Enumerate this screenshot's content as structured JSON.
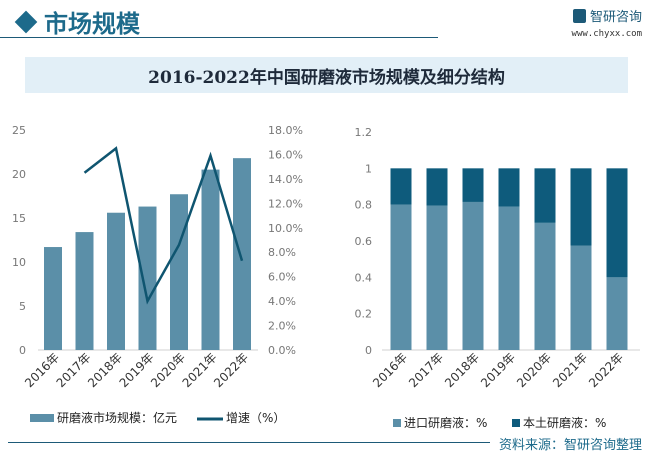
{
  "header": {
    "section_title": "市场规模",
    "brand_name": "智研咨询",
    "brand_url": "www.chyxx.com"
  },
  "title": "2016-2022年中国研磨液市场规模及细分结构",
  "source": "资料来源：智研咨询整理",
  "colors": {
    "bar": "#5b8fa8",
    "line": "#0f5570",
    "domestic": "#0e5b7c"
  },
  "chart_data": [
    {
      "type": "bar+line",
      "categories": [
        "2016年",
        "2017年",
        "2018年",
        "2019年",
        "2020年",
        "2021年",
        "2022年"
      ],
      "series": [
        {
          "name": "研磨液市场规模：亿元",
          "type": "bar",
          "axis": "left",
          "values": [
            11.7,
            13.4,
            15.6,
            16.3,
            17.7,
            20.5,
            21.8
          ]
        },
        {
          "name": "增速（%）",
          "type": "line",
          "axis": "right",
          "values": [
            null,
            14.5,
            16.5,
            4.0,
            8.6,
            15.9,
            7.3
          ]
        }
      ],
      "ylim": [
        0,
        25
      ],
      "yticks": [
        "0",
        "5",
        "10",
        "15",
        "20",
        "25"
      ],
      "y2lim": [
        0,
        18
      ],
      "y2ticks": [
        "0.0%",
        "2.0%",
        "4.0%",
        "6.0%",
        "8.0%",
        "10.0%",
        "12.0%",
        "14.0%",
        "16.0%",
        "18.0%"
      ],
      "legend": "bottom"
    },
    {
      "type": "stacked-bar",
      "categories": [
        "2016年",
        "2017年",
        "2018年",
        "2019年",
        "2020年",
        "2021年",
        "2022年"
      ],
      "series": [
        {
          "name": "进口研磨液：%",
          "values": [
            0.8,
            0.795,
            0.815,
            0.79,
            0.7,
            0.575,
            0.4
          ]
        },
        {
          "name": "本土研磨液：%",
          "values": [
            0.2,
            0.205,
            0.185,
            0.21,
            0.3,
            0.425,
            0.6
          ]
        }
      ],
      "ylim": [
        0,
        1.2
      ],
      "yticks": [
        "0",
        "0.2",
        "0.4",
        "0.6",
        "0.8",
        "1",
        "1.2"
      ],
      "legend": "bottom"
    }
  ]
}
